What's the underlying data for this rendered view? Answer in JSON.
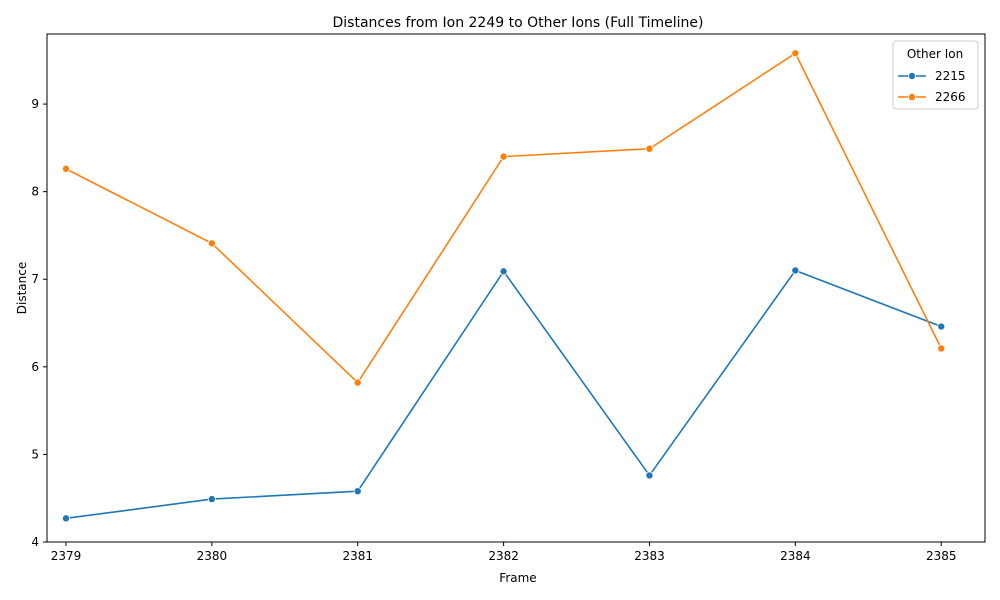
{
  "chart_data": {
    "type": "line",
    "title": "Distances from Ion 2249 to Other Ions (Full Timeline)",
    "xlabel": "Frame",
    "ylabel": "Distance",
    "x": [
      2379,
      2380,
      2381,
      2382,
      2383,
      2384,
      2385
    ],
    "xlim": [
      2378.87,
      2385.3
    ],
    "ylim": [
      4.0,
      9.8
    ],
    "yticks": [
      4,
      5,
      6,
      7,
      8,
      9
    ],
    "grid": false,
    "legend": {
      "title": "Other Ion",
      "placement": "top-right"
    },
    "series": [
      {
        "name": "2215",
        "color": "#1f77b4",
        "marker": "circle",
        "values": [
          4.27,
          4.49,
          4.58,
          7.09,
          4.76,
          7.1,
          6.46
        ]
      },
      {
        "name": "2266",
        "color": "#ff7f0e",
        "marker": "circle",
        "values": [
          8.26,
          7.41,
          5.82,
          8.4,
          8.49,
          9.58,
          6.21
        ]
      }
    ]
  }
}
